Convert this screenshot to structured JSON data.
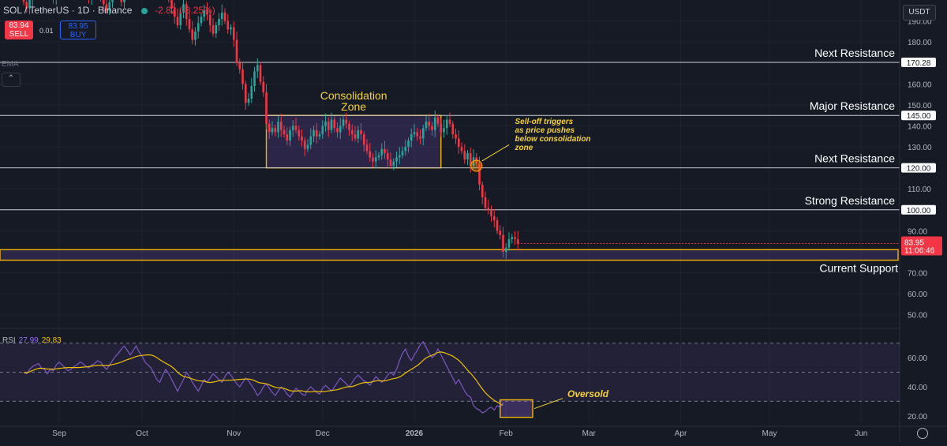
{
  "header": {
    "symbol": "SOL / TetherUS · 1D · Binance",
    "change": "-2.82 (-3.25%)",
    "sell_price": "83.94",
    "sell_label": "SELL",
    "spread": "0.01",
    "buy_price": "83.95",
    "buy_label": "BUY",
    "indicator": "EMA",
    "currency": "USDT"
  },
  "price_axis": {
    "ticks": [
      190,
      180,
      170,
      160,
      150,
      140,
      130,
      120,
      110,
      100,
      90,
      80,
      70,
      60,
      50
    ],
    "ylim": [
      45,
      200
    ]
  },
  "levels": [
    {
      "price": 170.28,
      "label": "Next Resistance",
      "tag": "170.28"
    },
    {
      "price": 145.0,
      "label": "Major Resistance",
      "tag": "145.00"
    },
    {
      "price": 120.0,
      "label": "Next Resistance",
      "tag": "120.00"
    },
    {
      "price": 100.0,
      "label": "Strong Resistance",
      "tag": "100.00"
    }
  ],
  "support": {
    "label": "Current Support",
    "low": 76,
    "high": 81
  },
  "consolidation": {
    "label_line1": "Consolidation",
    "label_line2": "Zone",
    "x_start": 82,
    "x_end": 141,
    "low": 120,
    "high": 145
  },
  "annotation": {
    "lines": [
      "Sell-off triggers",
      "as price pushes",
      "below consolidation",
      "zone"
    ]
  },
  "last_price": {
    "value": "83.95",
    "countdown": "11:06:46"
  },
  "x_axis": {
    "months": [
      {
        "label": "Sep",
        "day": 12
      },
      {
        "label": "Oct",
        "day": 40
      },
      {
        "label": "Nov",
        "day": 71
      },
      {
        "label": "Dec",
        "day": 101
      },
      {
        "label": "2026",
        "day": 132
      },
      {
        "label": "Feb",
        "day": 163
      },
      {
        "label": "Mar",
        "day": 191
      },
      {
        "label": "Apr",
        "day": 222
      },
      {
        "label": "May",
        "day": 252
      },
      {
        "label": "Jun",
        "day": 283
      }
    ],
    "xlim": [
      -8,
      296
    ]
  },
  "rsi": {
    "label": "RSI",
    "value1": "27.99",
    "value2": "29.83",
    "ticks": [
      60,
      40,
      20
    ],
    "ylim": [
      15,
      78
    ],
    "upper": 70,
    "mid": 50,
    "lower": 30,
    "oversold_label": "Oversold",
    "oversold_x": [
      161,
      172
    ],
    "oversold_y": [
      19,
      31
    ]
  },
  "colors": {
    "up": "#26a69a",
    "down": "#f23645",
    "zone": "#f5b400",
    "rsi": "#7e57c2",
    "rsi_ma": "#f0c000",
    "grid": "#1f2330",
    "level": "#c9ccd4"
  },
  "chart_data": {
    "type": "candlestick",
    "title": "SOL / TetherUS · 1D · Binance",
    "close_start": 209,
    "close": [
      199,
      196,
      200,
      203,
      205,
      207,
      208,
      212,
      209,
      204,
      201,
      206,
      210,
      212,
      208,
      204,
      202,
      206,
      208,
      210,
      206,
      203,
      201,
      205,
      208,
      206,
      202,
      198,
      195,
      199,
      204,
      206,
      202,
      199,
      204,
      209,
      212,
      216,
      221,
      224,
      225,
      220,
      214,
      218,
      223,
      216,
      211,
      208,
      205,
      201,
      196,
      192,
      188,
      194,
      198,
      191,
      186,
      181,
      185,
      189,
      192,
      195,
      193,
      188,
      184,
      188,
      191,
      194,
      190,
      186,
      187,
      181,
      170,
      167,
      160,
      151,
      153,
      159,
      166,
      169,
      161,
      156,
      141,
      137,
      139,
      137,
      142,
      138,
      136,
      133,
      138,
      140,
      138,
      135,
      133,
      129,
      131,
      135,
      138,
      135,
      136,
      140,
      142,
      138,
      143,
      139,
      137,
      140,
      143,
      141,
      138,
      136,
      134,
      138,
      136,
      131,
      128,
      125,
      123,
      125,
      126,
      129,
      127,
      124,
      121,
      123,
      125,
      126,
      128,
      130,
      133,
      136,
      137,
      135,
      134,
      139,
      142,
      140,
      138,
      144,
      141,
      137,
      139,
      143,
      141,
      136,
      134,
      130,
      128,
      124,
      127,
      121,
      125,
      122,
      112,
      106,
      101,
      100,
      97,
      95,
      90,
      88,
      80,
      82,
      86,
      87,
      86,
      84
    ],
    "rsi": [
      50,
      49,
      52,
      54,
      55,
      56,
      53,
      52,
      49,
      52,
      51,
      55,
      57,
      55,
      53,
      51,
      52,
      54,
      55,
      57,
      56,
      54,
      53,
      55,
      56,
      58,
      57,
      54,
      52,
      55,
      58,
      61,
      63,
      66,
      68,
      65,
      62,
      65,
      68,
      64,
      61,
      57,
      55,
      53,
      49,
      45,
      43,
      48,
      52,
      49,
      45,
      41,
      37,
      41,
      45,
      50,
      47,
      43,
      40,
      37,
      41,
      45,
      43,
      46,
      49,
      47,
      45,
      43,
      47,
      50,
      48,
      45,
      42,
      40,
      43,
      46,
      44,
      41,
      38,
      34,
      36,
      40,
      42,
      39,
      36,
      34,
      37,
      40,
      38,
      35,
      33,
      36,
      39,
      37,
      35,
      34,
      38,
      40,
      38,
      36,
      35,
      39,
      41,
      39,
      37,
      40,
      43,
      46,
      44,
      42,
      40,
      43,
      46,
      48,
      46,
      44,
      43,
      41,
      44,
      47,
      45,
      43,
      45,
      48,
      50,
      48,
      52,
      58,
      63,
      66,
      61,
      58,
      62,
      65,
      69,
      71,
      67,
      63,
      60,
      62,
      66,
      62,
      58,
      54,
      50,
      46,
      42,
      45,
      41,
      37,
      34,
      33,
      27,
      25,
      24,
      22,
      23,
      25,
      26,
      24,
      27,
      26,
      29
    ]
  }
}
